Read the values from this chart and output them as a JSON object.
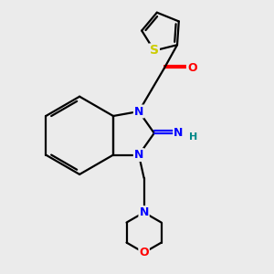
{
  "bg_color": "#ebebeb",
  "bond_color": "#000000",
  "atom_colors": {
    "N": "#0000ff",
    "O": "#ff0000",
    "S": "#cccc00",
    "H": "#008888",
    "C": "#000000"
  },
  "line_width": 1.6,
  "font_size": 9
}
